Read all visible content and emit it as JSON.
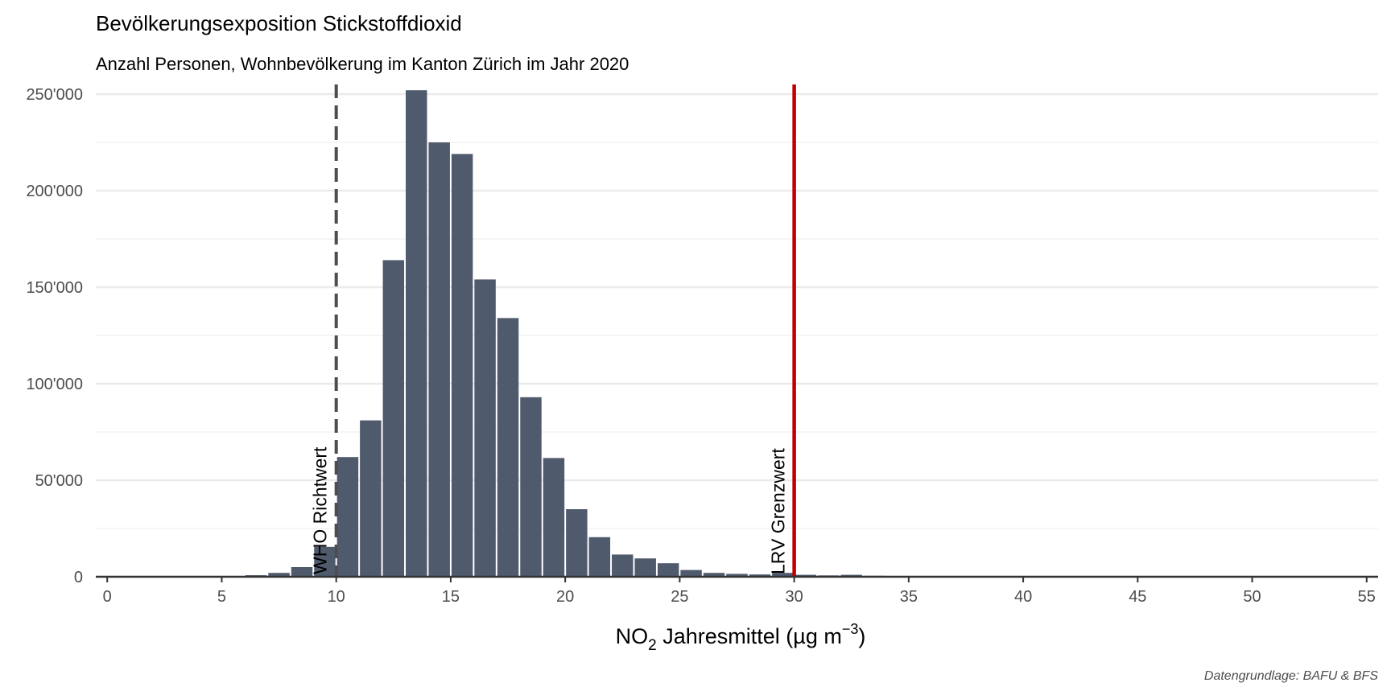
{
  "chart_data": {
    "type": "bar",
    "title": "Bevölkerungsexposition Stickstoffdioxid",
    "subtitle": "Anzahl Personen, Wohnbevölkerung im Kanton Zürich im Jahr 2020",
    "xlabel": {
      "prefix": "NO",
      "subscript": "2",
      "middle": " Jahresmittel (µg m",
      "superscript": "−3",
      "suffix": ")"
    },
    "ylabel": "",
    "caption": "Datengrundlage: BAFU & BFS",
    "xlim": [
      -0.5,
      55.5
    ],
    "ylim": [
      0,
      255000
    ],
    "x_ticks": [
      0,
      5,
      10,
      15,
      20,
      25,
      30,
      35,
      40,
      45,
      50,
      55
    ],
    "y_ticks": [
      0,
      50000,
      100000,
      150000,
      200000,
      250000
    ],
    "y_tick_labels": [
      "0",
      "50'000",
      "100'000",
      "150'000",
      "200'000",
      "250'000"
    ],
    "grid": true,
    "bar_color": "#4f5a6d",
    "bin_width": 1,
    "bars": [
      {
        "x": 6.5,
        "y": 800
      },
      {
        "x": 7.5,
        "y": 2000
      },
      {
        "x": 8.5,
        "y": 5000
      },
      {
        "x": 9.5,
        "y": 15500
      },
      {
        "x": 10.5,
        "y": 62000
      },
      {
        "x": 11.5,
        "y": 81000
      },
      {
        "x": 12.5,
        "y": 164000
      },
      {
        "x": 13.5,
        "y": 252000
      },
      {
        "x": 14.5,
        "y": 225000
      },
      {
        "x": 15.5,
        "y": 219000
      },
      {
        "x": 16.5,
        "y": 154000
      },
      {
        "x": 17.5,
        "y": 134000
      },
      {
        "x": 18.5,
        "y": 93000
      },
      {
        "x": 19.5,
        "y": 61500
      },
      {
        "x": 20.5,
        "y": 35000
      },
      {
        "x": 21.5,
        "y": 20500
      },
      {
        "x": 22.5,
        "y": 11500
      },
      {
        "x": 23.5,
        "y": 9500
      },
      {
        "x": 24.5,
        "y": 7000
      },
      {
        "x": 25.5,
        "y": 3500
      },
      {
        "x": 26.5,
        "y": 2000
      },
      {
        "x": 27.5,
        "y": 1500
      },
      {
        "x": 28.5,
        "y": 1200
      },
      {
        "x": 29.5,
        "y": 2000
      },
      {
        "x": 30.5,
        "y": 1000
      },
      {
        "x": 31.5,
        "y": 700
      },
      {
        "x": 32.5,
        "y": 1000
      },
      {
        "x": 33.5,
        "y": 500
      }
    ],
    "reference_lines": [
      {
        "x": 10,
        "label": "WHO Richtwert",
        "style": "dashed",
        "color": "#4d4d4d"
      },
      {
        "x": 30,
        "label": "LRV Grenzwert",
        "style": "solid",
        "color": "#c00000"
      }
    ]
  }
}
